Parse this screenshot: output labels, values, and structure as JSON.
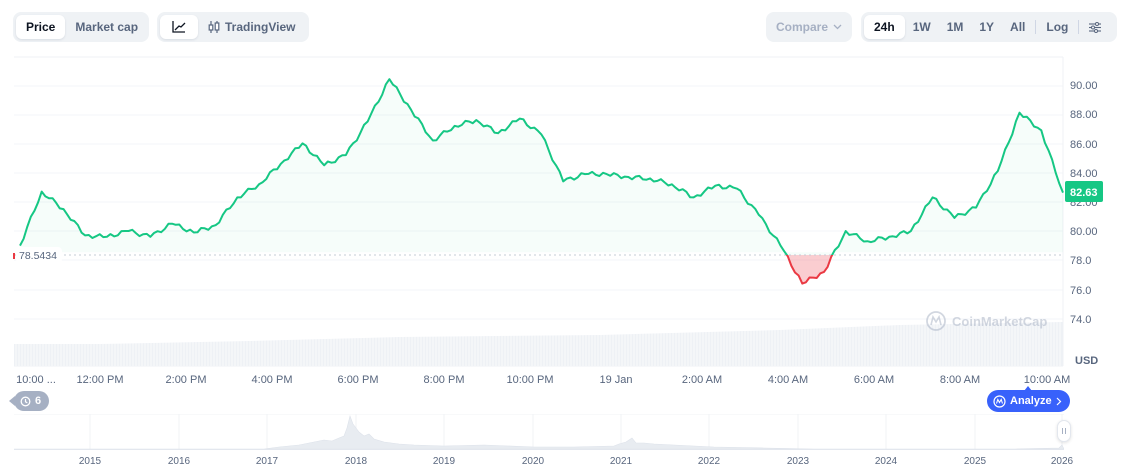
{
  "toolbar": {
    "type_tabs": [
      {
        "label": "Price",
        "active": true
      },
      {
        "label": "Market cap",
        "active": false
      }
    ],
    "view_tabs": [
      {
        "label": "",
        "icon": "line-chart-icon",
        "active": true
      },
      {
        "label": "TradingView",
        "icon": "candlestick-icon",
        "active": false
      }
    ],
    "compare_label": "Compare",
    "range_tabs": [
      {
        "label": "24h",
        "active": true
      },
      {
        "label": "1W",
        "active": false
      },
      {
        "label": "1M",
        "active": false
      },
      {
        "label": "1Y",
        "active": false
      },
      {
        "label": "All",
        "active": false
      }
    ],
    "log_label": "Log",
    "settings_icon": "sliders-icon"
  },
  "chart": {
    "baseline_label": "78.5434",
    "current_price_label": "82.63",
    "currency_label": "USD",
    "watermark": "CoinMarketCap",
    "colors": {
      "up_line": "#16c784",
      "down_line": "#ea3943",
      "up_fill": "#16c784",
      "down_fill": "#ea3943",
      "grid": "#eff2f5",
      "axis_text": "#58667e",
      "price_tag_bg": "#16c784"
    },
    "history_badge_count": "6",
    "analyze_label": "Analyze"
  },
  "chart_data": {
    "type": "area",
    "title": "",
    "xlabel": "",
    "ylabel": "USD",
    "ylim": [
      73,
      91
    ],
    "baseline": 78.5434,
    "current_value": 82.63,
    "y_ticks": [
      "90.00",
      "88.00",
      "86.00",
      "84.00",
      "82.00",
      "80.00",
      "78.0",
      "76.0",
      "74.0"
    ],
    "x_ticks": [
      "10:00 ...",
      "12:00 PM",
      "2:00 PM",
      "4:00 PM",
      "6:00 PM",
      "8:00 PM",
      "10:00 PM",
      "19 Jan",
      "2:00 AM",
      "4:00 AM",
      "6:00 AM",
      "8:00 AM",
      "10:00 AM"
    ],
    "series": [
      {
        "name": "Price",
        "x": [
          "10:00",
          "10:30",
          "11:00",
          "11:30",
          "12:00",
          "12:30",
          "1:00",
          "1:30",
          "2:00",
          "2:30",
          "3:00",
          "3:30",
          "4:00",
          "4:30",
          "5:00",
          "5:30",
          "6:00",
          "6:30",
          "7:00",
          "7:30",
          "8:00",
          "8:30",
          "9:00",
          "9:30",
          "10:00",
          "10:30",
          "11:00",
          "11:30",
          "00:00",
          "00:30",
          "1:00",
          "1:30",
          "2:00",
          "2:30",
          "3:00",
          "3:30",
          "4:00",
          "4:30",
          "5:00",
          "5:30",
          "6:00",
          "6:30",
          "7:00",
          "7:30",
          "8:00",
          "8:30",
          "9:00",
          "9:30",
          "10:00"
        ],
        "values": [
          79.0,
          82.7,
          81.5,
          79.7,
          79.6,
          80.0,
          79.6,
          80.5,
          79.9,
          80.4,
          82.3,
          83.2,
          84.6,
          86.0,
          84.5,
          85.2,
          87.5,
          90.4,
          88.3,
          86.2,
          87.2,
          87.6,
          86.7,
          87.7,
          86.6,
          83.4,
          83.9,
          83.9,
          83.7,
          83.6,
          83.2,
          82.3,
          83.1,
          82.9,
          81.1,
          79.0,
          76.4,
          77.2,
          80.0,
          79.3,
          79.6,
          80.0,
          82.3,
          80.9,
          81.6,
          84.1,
          88.1,
          86.9,
          82.63
        ]
      }
    ],
    "navigator": {
      "years": [
        "2015",
        "2016",
        "2017",
        "2018",
        "2019",
        "2020",
        "2021",
        "2022",
        "2023",
        "2024",
        "2025",
        "2026"
      ]
    }
  },
  "x_axis": {
    "labels": [
      "10:00 ...",
      "12:00 PM",
      "2:00 PM",
      "4:00 PM",
      "6:00 PM",
      "8:00 PM",
      "10:00 PM",
      "19 Jan",
      "2:00 AM",
      "4:00 AM",
      "6:00 AM",
      "8:00 AM",
      "10:00 AM"
    ]
  },
  "navigator": {
    "years": [
      "2015",
      "2016",
      "2017",
      "2018",
      "2019",
      "2020",
      "2021",
      "2022",
      "2023",
      "2024",
      "2025",
      "2026"
    ]
  }
}
